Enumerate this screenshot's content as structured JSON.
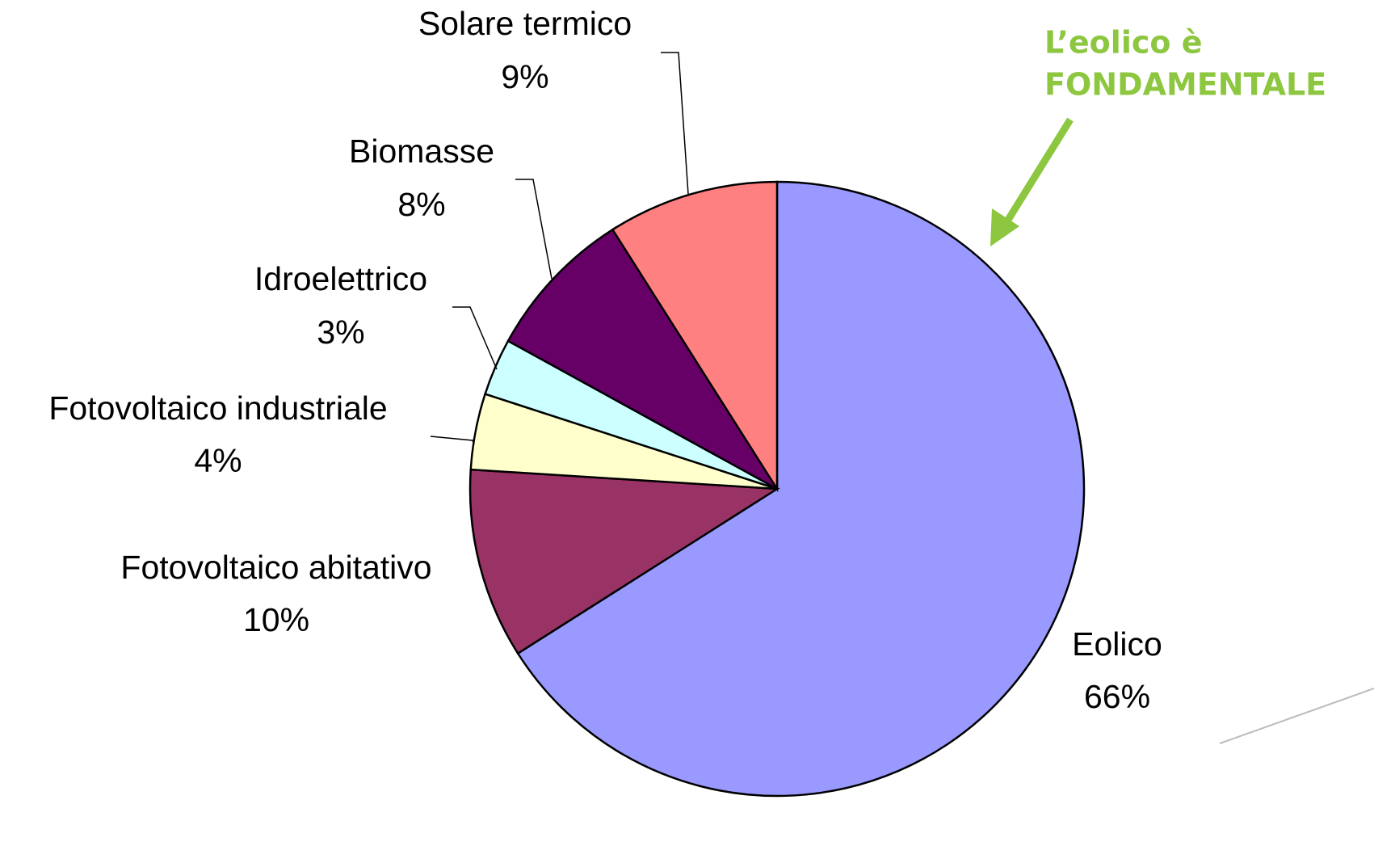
{
  "chart_data": {
    "type": "pie",
    "categories": [
      "Eolico",
      "Fotovoltaico abitativo",
      "Fotovoltaico industriale",
      "Idroelettrico",
      "Biomasse",
      "Solare termico"
    ],
    "values": [
      66,
      10,
      4,
      3,
      8,
      9
    ],
    "value_labels": [
      "66%",
      "10%",
      "4%",
      "3%",
      "8%",
      "9%"
    ],
    "colors": [
      "#9999ff",
      "#993366",
      "#ffffcc",
      "#ccffff",
      "#660066",
      "#ff8080"
    ],
    "annotation": [
      "L’eolico è",
      "FONDAMENTALE"
    ]
  }
}
